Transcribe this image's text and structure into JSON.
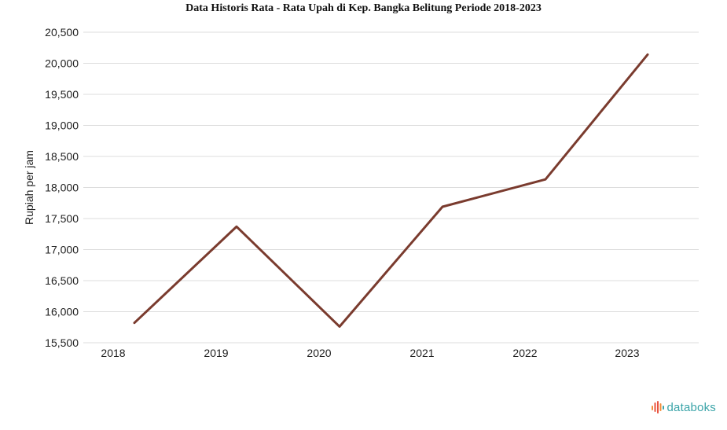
{
  "chart_data": {
    "type": "line",
    "title": "Data Historis Rata - Rata Upah di Kep. Bangka Belitung Periode 2018-2023",
    "xlabel": "",
    "ylabel": "Rupiah per jam",
    "categories": [
      "2018",
      "2019",
      "2020",
      "2021",
      "2022",
      "2023"
    ],
    "series": [
      {
        "values": [
          15820,
          17370,
          15760,
          17690,
          18130,
          20140
        ],
        "color": "#7a3b2e"
      }
    ],
    "ylim": [
      15500,
      20500
    ],
    "yticks": [
      15500,
      16000,
      16500,
      17000,
      17500,
      18000,
      18500,
      19000,
      19500,
      20000,
      20500
    ],
    "ytick_labels": [
      "15,500",
      "16,000",
      "16,500",
      "17,000",
      "17,500",
      "18,000",
      "18,500",
      "19,000",
      "19,500",
      "20,000",
      "20,500"
    ],
    "grid": true,
    "legend": "none"
  },
  "brand": {
    "name": "databoks",
    "logo_icon": "databoks-logo-icon",
    "colors": [
      "#e8533f",
      "#f28c38",
      "#3aa4a8"
    ]
  }
}
